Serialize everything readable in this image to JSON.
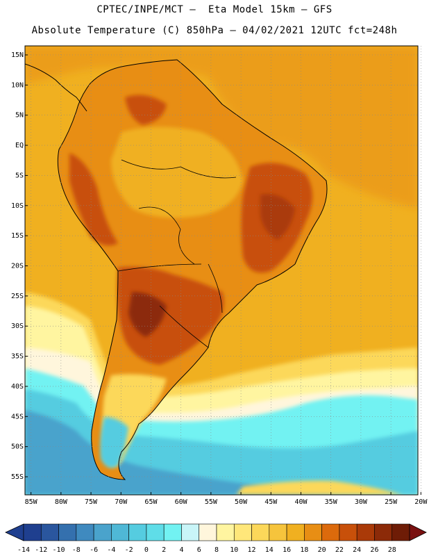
{
  "header": {
    "line1": "CPTEC/INPE/MCT –  Eta Model 15km – GFS",
    "line2": "Absolute Temperature (C) 850hPa – 04/02/2021 12UTC fct=248h"
  },
  "axes": {
    "lat_labels": [
      "15N",
      "10N",
      "5N",
      "EQ",
      "5S",
      "10S",
      "15S",
      "20S",
      "25S",
      "30S",
      "35S",
      "40S",
      "45S",
      "50S",
      "55S"
    ],
    "lat_values": [
      15,
      10,
      5,
      0,
      -5,
      -10,
      -15,
      -20,
      -25,
      -30,
      -35,
      -40,
      -45,
      -50,
      -55
    ],
    "lon_labels": [
      "85W",
      "80W",
      "75W",
      "70W",
      "65W",
      "60W",
      "55W",
      "50W",
      "45W",
      "40W",
      "35W",
      "30W",
      "25W",
      "20W"
    ],
    "lon_values": [
      -85,
      -80,
      -75,
      -70,
      -65,
      -60,
      -55,
      -50,
      -45,
      -40,
      -35,
      -30,
      -25,
      -20
    ],
    "lat_range": [
      -58,
      16.5
    ],
    "lon_range": [
      -86,
      -20.5
    ]
  },
  "colorbar": {
    "labels": [
      "-14",
      "-12",
      "-10",
      "-8",
      "-6",
      "-4",
      "-2",
      "0",
      "2",
      "4",
      "6",
      "8",
      "10",
      "12",
      "14",
      "16",
      "18",
      "20",
      "22",
      "24",
      "26",
      "28"
    ],
    "colors": [
      "#1f3f8f",
      "#2a569e",
      "#3470ae",
      "#3f8abf",
      "#4aa3cc",
      "#4fb8d6",
      "#55cce0",
      "#5fdde8",
      "#72f2f2",
      "#c9f5f8",
      "#fff6dc",
      "#fff5a0",
      "#ffe77a",
      "#fcd85a",
      "#f6c43c",
      "#f0b020",
      "#e88e14",
      "#dc6a0c",
      "#c8500a",
      "#aa3a08",
      "#8c2a08",
      "#6e1c06"
    ]
  },
  "map": {
    "field": "Absolute Temperature (C) 850hPa",
    "ocean_color": "#f0b020",
    "land_warm_color": "#c8500a",
    "land_hot_color": "#aa3a08",
    "cold_sea_color": "#4fb8d6",
    "cool_sea_color": "#72f2f2"
  }
}
